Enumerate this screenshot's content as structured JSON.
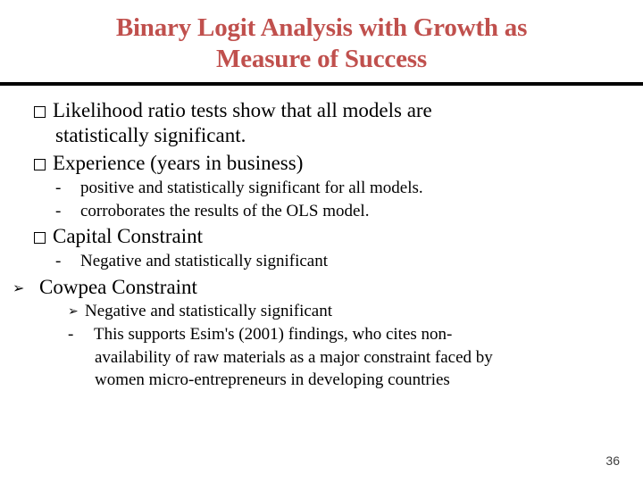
{
  "title_color": "#c0504d",
  "text_color": "#000000",
  "background_color": "#ffffff",
  "divider_color": "#000000",
  "title_line1": "Binary Logit Analysis with Growth as",
  "title_line2": "Measure of Success",
  "page_number": "36",
  "fonts": {
    "title_size_pt": 29,
    "l1_size_pt": 23,
    "l2_size_pt": 19,
    "l3_size_pt": 19
  },
  "bullets": {
    "b1_line1": "Likelihood ratio tests show that all models are",
    "b1_line2": "statistically significant.",
    "b2": "Experience (years in business)",
    "b2_sub1": "positive and statistically significant for all models.",
    "b2_sub2": "corroborates the results of the OLS model.",
    "b3": "Capital Constraint",
    "b3_sub1": "Negative and statistically significant",
    "b4": "Cowpea Constraint",
    "b4_sub1": "Negative and statistically significant",
    "b4_sub2_l1": "This supports Esim's (2001) findings, who cites non-",
    "b4_sub2_l2": "availability of raw materials as a major constraint faced by",
    "b4_sub2_l3": "women micro-entrepreneurs in developing countries"
  }
}
